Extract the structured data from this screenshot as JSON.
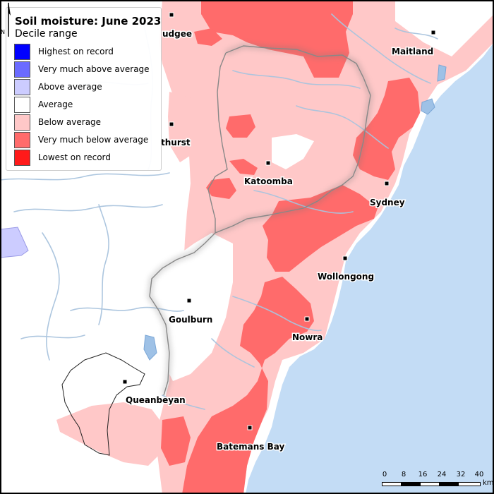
{
  "legend": {
    "title": "Soil moisture: June 2023",
    "subtitle": "Decile range",
    "items": [
      {
        "label": "Highest on record",
        "color": "#0000ff"
      },
      {
        "label": "Very much above average",
        "color": "#6b6bff"
      },
      {
        "label": "Above average",
        "color": "#ccccff"
      },
      {
        "label": "Average",
        "color": "#ffffff"
      },
      {
        "label": "Below average",
        "color": "#ffc8c8"
      },
      {
        "label": "Very much below average",
        "color": "#ff6b6b"
      },
      {
        "label": "Lowest on record",
        "color": "#ff1a1a"
      }
    ]
  },
  "towns": {
    "mudgee": "udgee",
    "bathurst": "thurst",
    "maitland": "Maitland",
    "katoomba": "Katoomba",
    "sydney": "Sydney",
    "wollongong": "Wollongong",
    "goulburn": "Goulburn",
    "nowra": "Nowra",
    "queanbeyan": "Queanbeyan",
    "batemans_bay": "Batemans Bay"
  },
  "scale_bar": {
    "ticks": [
      "0",
      "8",
      "16",
      "24",
      "32",
      "40"
    ],
    "unit": "km"
  },
  "north_arrow": {
    "label": "N"
  },
  "colors": {
    "ocean": "#c3dcf5",
    "land": "#ffffff",
    "river": "#a9c4de"
  }
}
